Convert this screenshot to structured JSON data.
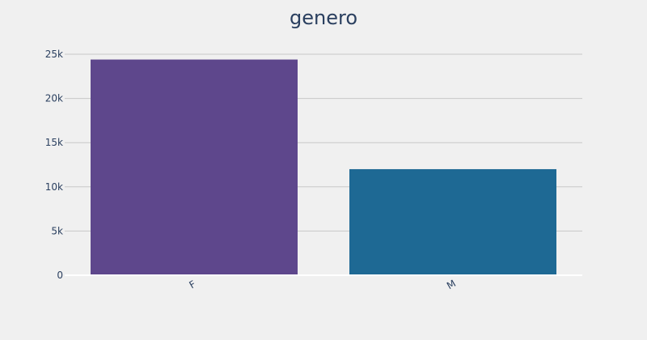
{
  "chart_data": {
    "type": "bar",
    "title": "genero",
    "xlabel": "",
    "ylabel": "",
    "categories": [
      "F",
      "M"
    ],
    "values": [
      24400,
      12000
    ],
    "colors": [
      "#5e478c",
      "#1e6994"
    ],
    "ylim": [
      0,
      25000
    ],
    "yticks": [
      {
        "value": 0,
        "label": "0"
      },
      {
        "value": 5000,
        "label": "5k"
      },
      {
        "value": 10000,
        "label": "10k"
      },
      {
        "value": 15000,
        "label": "15k"
      },
      {
        "value": 20000,
        "label": "20k"
      },
      {
        "value": 25000,
        "label": "25k"
      }
    ],
    "grid": true,
    "legend": "none"
  }
}
